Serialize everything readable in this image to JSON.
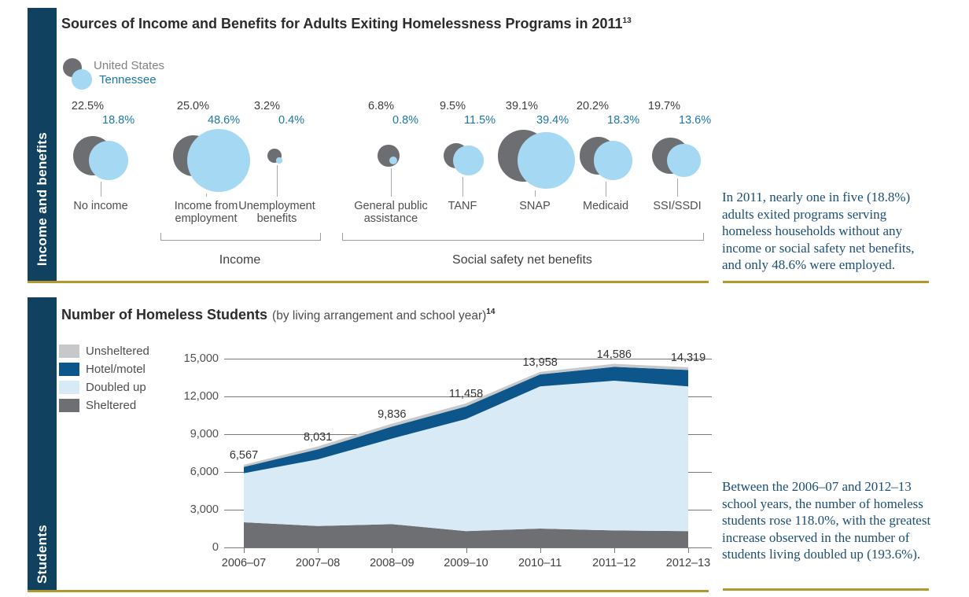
{
  "colors": {
    "navy": "#10425f",
    "gold": "#b2982e",
    "title_text": "#2b2b2e",
    "us_gray": "#6d6e71",
    "tn_blue": "#a5d8f2",
    "tn_text": "#1b76aa",
    "annotation_navy": "#1c4e75",
    "stem_gray": "#a7a9ac",
    "sheltered": "#6e6f72",
    "doubled_up": "#d9eaf7",
    "hotel_motel": "#0d568c",
    "unsheltered": "#c7c8ca"
  },
  "income_section": {
    "sidebar_label": "Income and benefits",
    "title": "Sources of Income and Benefits for Adults Exiting Homelessness Programs in 2011",
    "title_superscript": "13",
    "legend": {
      "us_label": "United States",
      "tn_label": "Tennessee"
    },
    "annotation": "In 2011, nearly one in five (18.8%) adults exited programs serving homeless households without any income or social safety net benefits, and only 48.6% were employed."
  },
  "students_section": {
    "sidebar_label": "Students",
    "title": "Number of Homeless Students",
    "subtitle": "(by living arrangement and school year)",
    "title_superscript": "14",
    "annotation": "Between the 2006–07 and 2012–13 school years, the number of homeless students rose 118.0%, with the greatest increase observed in the number of students living doubled up (193.6%)."
  },
  "chart_data": [
    {
      "id": "income_benefits_bubbles",
      "type": "bubble",
      "title": "Sources of Income and Benefits for Adults Exiting Homelessness Programs in 2011",
      "unit": "percent",
      "series_names": [
        "United States",
        "Tennessee"
      ],
      "points": [
        {
          "category": "No income",
          "us": 22.5,
          "tn": 18.8,
          "us_label": "22.5%",
          "tn_label": "18.8%",
          "group": null
        },
        {
          "category": "Income from employment",
          "us": 25.0,
          "tn": 48.6,
          "us_label": "25.0%",
          "tn_label": "48.6%",
          "group": "Income"
        },
        {
          "category": "Unemployment benefits",
          "us": 3.2,
          "tn": 0.4,
          "us_label": "3.2%",
          "tn_label": "0.4%",
          "group": "Income"
        },
        {
          "category": "General public assistance",
          "us": 6.8,
          "tn": 0.8,
          "us_label": "6.8%",
          "tn_label": "0.8%",
          "group": "Social safety net benefits"
        },
        {
          "category": "TANF",
          "us": 9.5,
          "tn": 11.5,
          "us_label": "9.5%",
          "tn_label": "11.5%",
          "group": "Social safety net benefits"
        },
        {
          "category": "SNAP",
          "us": 39.1,
          "tn": 39.4,
          "us_label": "39.1%",
          "tn_label": "39.4%",
          "group": "Social safety net benefits"
        },
        {
          "category": "Medicaid",
          "us": 20.2,
          "tn": 18.3,
          "us_label": "20.2%",
          "tn_label": "18.3%",
          "group": "Social safety net benefits"
        },
        {
          "category": "SSI/SSDI",
          "us": 19.7,
          "tn": 13.6,
          "us_label": "19.7%",
          "tn_label": "13.6%",
          "group": "Social safety net benefits"
        }
      ],
      "group_labels": [
        "Income",
        "Social safety net benefits"
      ]
    },
    {
      "id": "homeless_students_area",
      "type": "area",
      "stacked": true,
      "title": "Number of Homeless Students",
      "subtitle": "(by living arrangement and school year)",
      "categories": [
        "2006–07",
        "2007–08",
        "2008–09",
        "2009–10",
        "2010–11",
        "2011–12",
        "2012–13"
      ],
      "series": [
        {
          "name": "Sheltered",
          "color_key": "sheltered",
          "values": [
            2000,
            1700,
            1850,
            1300,
            1500,
            1350,
            1300
          ]
        },
        {
          "name": "Doubled up",
          "color_key": "doubled_up",
          "values": [
            3900,
            5300,
            6800,
            8900,
            11300,
            11900,
            11500
          ]
        },
        {
          "name": "Hotel/motel",
          "color_key": "hotel_motel",
          "values": [
            500,
            800,
            950,
            1000,
            950,
            1100,
            1300
          ]
        },
        {
          "name": "Unsheltered",
          "color_key": "unsheltered",
          "values": [
            167,
            231,
            236,
            258,
            208,
            236,
            219
          ]
        }
      ],
      "totals": [
        6567,
        8031,
        9836,
        11458,
        13958,
        14586,
        14319
      ],
      "total_labels": [
        "6,567",
        "8,031",
        "9,836",
        "11,458",
        "13,958",
        "14,586",
        "14,319"
      ],
      "ytick_labels": [
        "15,000",
        "12,000",
        "9,000",
        "6,000",
        "3,000",
        "0"
      ],
      "ylim": [
        0,
        15000
      ],
      "grid": true,
      "legend": [
        "Unsheltered",
        "Hotel/motel",
        "Doubled up",
        "Sheltered"
      ],
      "legend_position": "left"
    }
  ]
}
